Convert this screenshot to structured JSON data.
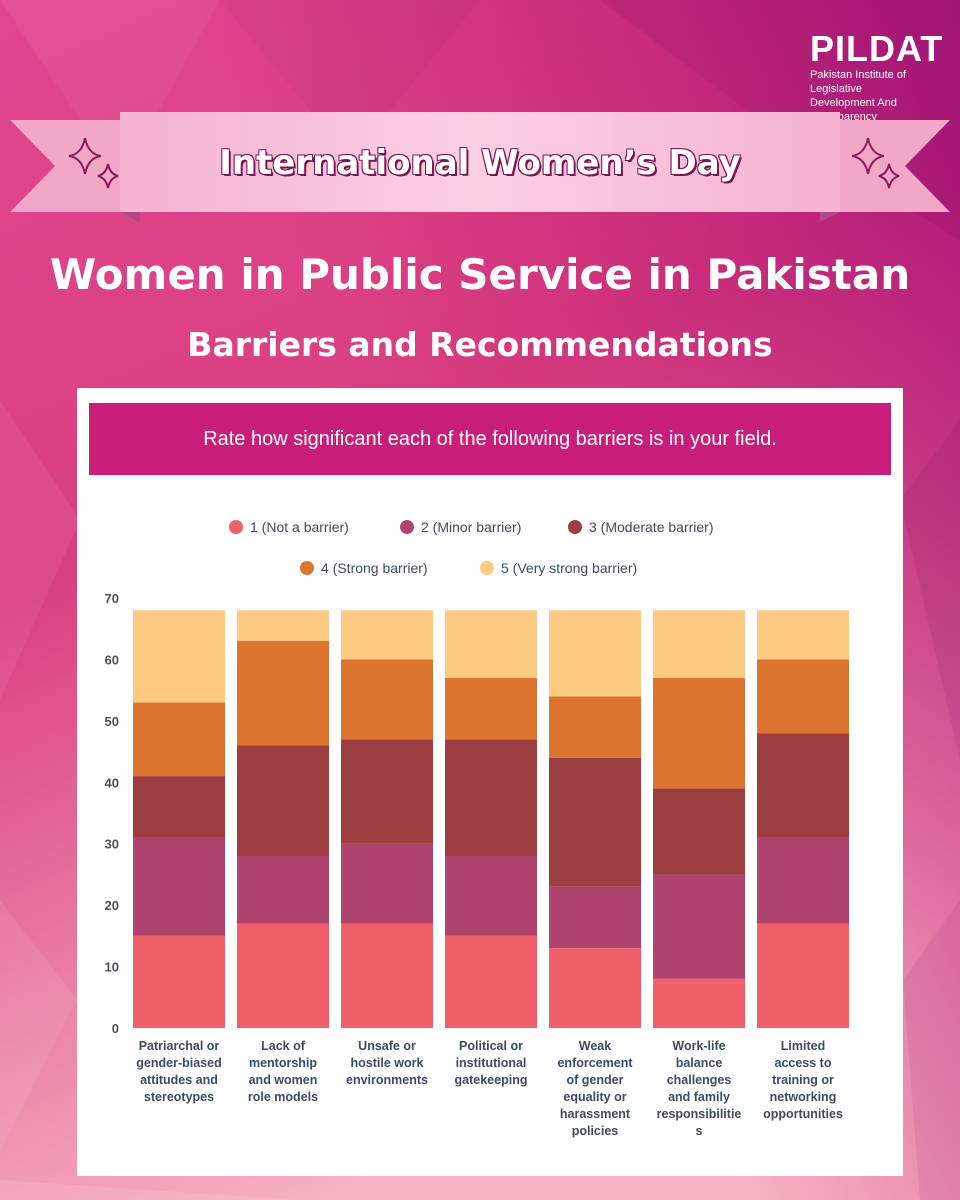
{
  "logo": {
    "wordmark": "PILDAT",
    "subtitle_line1": "Pakistan Institute of Legislative",
    "subtitle_line2": "Development And Transparency"
  },
  "banner": {
    "text": "International Women’s Day"
  },
  "title": "Women in Public Service in Pakistan",
  "subtitle": "Barriers and Recommendations",
  "colors": {
    "background_top": "#c8176f",
    "background_bottom": "#f9b3c6",
    "question_bar": "#c81e7a"
  },
  "chart_data": {
    "type": "bar",
    "stacked": true,
    "title": "Rate how significant each of the following barriers is in your field.",
    "categories": [
      "Patriarchal or gender-biased attitudes and stereotypes",
      "Lack of mentorship and women role models",
      "Unsafe or hostile work environments",
      "Political or institutional gatekeeping",
      "Weak enforcement of gender equality or harassment policies",
      "Work-life balance challenges and family responsibilities",
      "Limited access to training or networking opportunities"
    ],
    "category_label_lines": [
      [
        "Patriarchal or",
        "gender-biased",
        "attitudes and",
        "stereotypes"
      ],
      [
        "Lack of",
        "mentorship",
        "and women",
        "role models"
      ],
      [
        "Unsafe or",
        "hostile work",
        "environments"
      ],
      [
        "Political or",
        "institutional",
        "gatekeeping"
      ],
      [
        "Weak",
        "enforcement",
        "of gender",
        "equality or",
        "harassment",
        "policies"
      ],
      [
        "Work-life",
        "balance",
        "challenges",
        "and family",
        "responsibilitie",
        "s"
      ],
      [
        "Limited",
        "access to",
        "training or",
        "networking",
        "opportunities"
      ]
    ],
    "series": [
      {
        "name": "1 (Not a barrier)",
        "color": "#ef6068",
        "values": [
          15,
          17,
          17,
          15,
          13,
          8,
          17
        ]
      },
      {
        "name": "2 (Minor barrier)",
        "color": "#b0436d",
        "values": [
          16,
          11,
          13,
          13,
          10,
          17,
          14
        ]
      },
      {
        "name": "3 (Moderate barrier)",
        "color": "#9c3d3f",
        "values": [
          10,
          18,
          17,
          19,
          21,
          14,
          17
        ]
      },
      {
        "name": "4 (Strong barrier)",
        "color": "#dd7530",
        "values": [
          12,
          17,
          13,
          10,
          10,
          18,
          12
        ]
      },
      {
        "name": "5 (Very strong barrier)",
        "color": "#fbca80",
        "values": [
          15,
          5,
          8,
          11,
          14,
          11,
          8
        ]
      }
    ],
    "ylim": [
      0,
      70
    ],
    "yticks": [
      0,
      10,
      20,
      30,
      40,
      50,
      60,
      70
    ],
    "legend_position": "top",
    "grid": false
  }
}
